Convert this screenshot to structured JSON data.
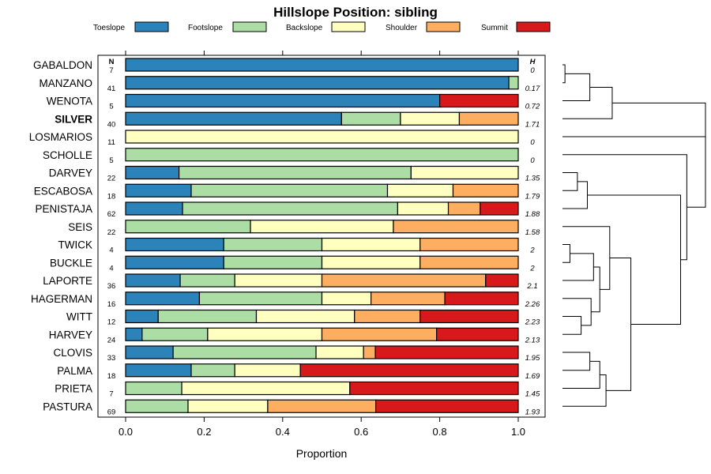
{
  "chart_data": {
    "type": "bar",
    "stacked": true,
    "orientation": "horizontal",
    "title": "Hillslope Position: sibling",
    "xlabel": "Proportion",
    "xlim": [
      0,
      1
    ],
    "xticks": [
      "0.0",
      "0.2",
      "0.4",
      "0.6",
      "0.8",
      "1.0"
    ],
    "n_header": "N",
    "h_header": "H",
    "legend": [
      {
        "name": "Toeslope",
        "color": "#2b83ba"
      },
      {
        "name": "Footslope",
        "color": "#abdda4"
      },
      {
        "name": "Backslope",
        "color": "#ffffbf"
      },
      {
        "name": "Shoulder",
        "color": "#fdae61"
      },
      {
        "name": "Summit",
        "color": "#d7191c"
      }
    ],
    "rows": [
      {
        "name": "GABALDON",
        "n": "7",
        "h": "0",
        "bold": false,
        "values": [
          1.0,
          0,
          0,
          0,
          0
        ]
      },
      {
        "name": "MANZANO",
        "n": "41",
        "h": "0.17",
        "bold": false,
        "values": [
          0.976,
          0.024,
          0,
          0,
          0
        ]
      },
      {
        "name": "WENOTA",
        "n": "5",
        "h": "0.72",
        "bold": false,
        "values": [
          0.8,
          0,
          0,
          0,
          0.2
        ]
      },
      {
        "name": "SILVER",
        "n": "40",
        "h": "1.71",
        "bold": true,
        "values": [
          0.55,
          0.15,
          0.15,
          0.15,
          0
        ]
      },
      {
        "name": "LOSMARIOS",
        "n": "11",
        "h": "0",
        "bold": false,
        "values": [
          0,
          0,
          1.0,
          0,
          0
        ]
      },
      {
        "name": "SCHOLLE",
        "n": "5",
        "h": "0",
        "bold": false,
        "values": [
          0,
          1.0,
          0,
          0,
          0
        ]
      },
      {
        "name": "DARVEY",
        "n": "22",
        "h": "1.35",
        "bold": false,
        "values": [
          0.136,
          0.591,
          0.273,
          0,
          0
        ]
      },
      {
        "name": "ESCABOSA",
        "n": "18",
        "h": "1.79",
        "bold": false,
        "values": [
          0.167,
          0.5,
          0.167,
          0.166,
          0
        ]
      },
      {
        "name": "PENISTAJA",
        "n": "62",
        "h": "1.88",
        "bold": false,
        "values": [
          0.145,
          0.548,
          0.129,
          0.081,
          0.097
        ]
      },
      {
        "name": "SEIS",
        "n": "22",
        "h": "1.58",
        "bold": false,
        "values": [
          0,
          0.318,
          0.364,
          0.318,
          0
        ]
      },
      {
        "name": "TWICK",
        "n": "4",
        "h": "2",
        "bold": false,
        "values": [
          0.25,
          0.25,
          0.25,
          0.25,
          0
        ]
      },
      {
        "name": "BUCKLE",
        "n": "4",
        "h": "2",
        "bold": false,
        "values": [
          0.25,
          0.25,
          0.25,
          0.25,
          0
        ]
      },
      {
        "name": "LAPORTE",
        "n": "36",
        "h": "2.1",
        "bold": false,
        "values": [
          0.139,
          0.139,
          0.222,
          0.417,
          0.083
        ]
      },
      {
        "name": "HAGERMAN",
        "n": "16",
        "h": "2.26",
        "bold": false,
        "values": [
          0.188,
          0.312,
          0.125,
          0.188,
          0.187
        ]
      },
      {
        "name": "WITT",
        "n": "12",
        "h": "2.23",
        "bold": false,
        "values": [
          0.083,
          0.25,
          0.25,
          0.167,
          0.25
        ]
      },
      {
        "name": "HARVEY",
        "n": "24",
        "h": "2.13",
        "bold": false,
        "values": [
          0.042,
          0.167,
          0.291,
          0.292,
          0.208
        ]
      },
      {
        "name": "CLOVIS",
        "n": "33",
        "h": "1.95",
        "bold": false,
        "values": [
          0.121,
          0.364,
          0.121,
          0.03,
          0.364
        ]
      },
      {
        "name": "PALMA",
        "n": "18",
        "h": "1.69",
        "bold": false,
        "values": [
          0.167,
          0.111,
          0.167,
          0,
          0.555
        ]
      },
      {
        "name": "PRIETA",
        "n": "7",
        "h": "1.45",
        "bold": false,
        "values": [
          0,
          0.143,
          0.428,
          0,
          0.429
        ]
      },
      {
        "name": "PASTURA",
        "n": "69",
        "h": "1.93",
        "bold": false,
        "values": [
          0,
          0.159,
          0.203,
          0.275,
          0.363
        ]
      }
    ],
    "dendrogram": {
      "leaf_order": [
        "GABALDON",
        "MANZANO",
        "WENOTA",
        "SILVER",
        "LOSMARIOS",
        "SCHOLLE",
        "DARVEY",
        "ESCABOSA",
        "PENISTAJA",
        "SEIS",
        "TWICK",
        "BUCKLE",
        "LAPORTE",
        "HAGERMAN",
        "WITT",
        "HARVEY",
        "CLOVIS",
        "PALMA",
        "PRIETA",
        "PASTURA"
      ],
      "merges": [
        {
          "a": [
            "leaf",
            0
          ],
          "b": [
            "leaf",
            1
          ],
          "height": 0.02
        },
        {
          "a": [
            "node",
            0
          ],
          "b": [
            "leaf",
            2
          ],
          "height": 0.22
        },
        {
          "a": [
            "node",
            1
          ],
          "b": [
            "leaf",
            3
          ],
          "height": 0.4
        },
        {
          "a": [
            "leaf",
            6
          ],
          "b": [
            "leaf",
            7
          ],
          "height": 0.12
        },
        {
          "a": [
            "node",
            3
          ],
          "b": [
            "leaf",
            8
          ],
          "height": 0.2
        },
        {
          "a": [
            "leaf",
            10
          ],
          "b": [
            "leaf",
            11
          ],
          "height": 0.06
        },
        {
          "a": [
            "node",
            5
          ],
          "b": [
            "leaf",
            12
          ],
          "height": 0.25
        },
        {
          "a": [
            "leaf",
            14
          ],
          "b": [
            "leaf",
            15
          ],
          "height": 0.15
        },
        {
          "a": [
            "leaf",
            13
          ],
          "b": [
            "node",
            7
          ],
          "height": 0.23
        },
        {
          "a": [
            "node",
            6
          ],
          "b": [
            "node",
            8
          ],
          "height": 0.3
        },
        {
          "a": [
            "leaf",
            9
          ],
          "b": [
            "node",
            9
          ],
          "height": 0.38
        },
        {
          "a": [
            "leaf",
            16
          ],
          "b": [
            "leaf",
            17
          ],
          "height": 0.22
        },
        {
          "a": [
            "node",
            11
          ],
          "b": [
            "leaf",
            18
          ],
          "height": 0.3
        },
        {
          "a": [
            "node",
            12
          ],
          "b": [
            "leaf",
            19
          ],
          "height": 0.35
        },
        {
          "a": [
            "node",
            10
          ],
          "b": [
            "node",
            13
          ],
          "height": 0.55
        },
        {
          "a": [
            "node",
            4
          ],
          "b": [
            "node",
            14
          ],
          "height": 0.95
        },
        {
          "a": [
            "leaf",
            5
          ],
          "b": [
            "node",
            15
          ],
          "height": 1.0
        },
        {
          "a": [
            "node",
            2
          ],
          "b": [
            "node",
            16
          ],
          "height": 1.15
        },
        {
          "a": [
            "leaf",
            4
          ],
          "b": [
            "node",
            17
          ],
          "height": 1.15
        }
      ]
    }
  }
}
